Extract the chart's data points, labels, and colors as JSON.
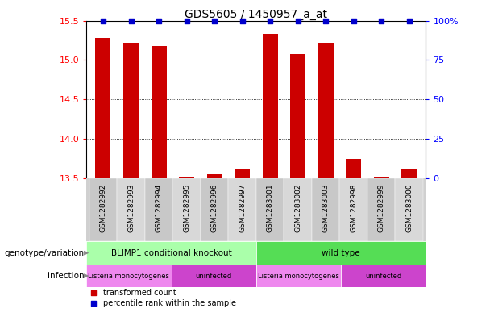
{
  "title": "GDS5605 / 1450957_a_at",
  "samples": [
    "GSM1282992",
    "GSM1282993",
    "GSM1282994",
    "GSM1282995",
    "GSM1282996",
    "GSM1282997",
    "GSM1283001",
    "GSM1283002",
    "GSM1283003",
    "GSM1282998",
    "GSM1282999",
    "GSM1283000"
  ],
  "transformed_counts": [
    15.28,
    15.22,
    15.18,
    13.52,
    13.55,
    13.62,
    15.33,
    15.08,
    15.22,
    13.75,
    13.52,
    13.62
  ],
  "ylim_left": [
    13.5,
    15.5
  ],
  "yticks_left": [
    13.5,
    14.0,
    14.5,
    15.0,
    15.5
  ],
  "yticks_right": [
    0,
    25,
    50,
    75,
    100
  ],
  "bar_color": "#cc0000",
  "dot_color": "#0000cc",
  "sample_bg_color": "#d0d0d0",
  "genotype_groups": [
    {
      "label": "BLIMP1 conditional knockout",
      "start": 0,
      "end": 6,
      "color": "#aaffaa"
    },
    {
      "label": "wild type",
      "start": 6,
      "end": 12,
      "color": "#55dd55"
    }
  ],
  "infection_groups": [
    {
      "label": "Listeria monocytogenes",
      "start": 0,
      "end": 3,
      "color": "#ee88ee"
    },
    {
      "label": "uninfected",
      "start": 3,
      "end": 6,
      "color": "#cc44cc"
    },
    {
      "label": "Listeria monocytogenes",
      "start": 6,
      "end": 9,
      "color": "#ee88ee"
    },
    {
      "label": "uninfected",
      "start": 9,
      "end": 12,
      "color": "#cc44cc"
    }
  ],
  "legend_items": [
    {
      "label": "transformed count",
      "color": "#cc0000"
    },
    {
      "label": "percentile rank within the sample",
      "color": "#0000cc"
    }
  ],
  "title_fontsize": 10,
  "tick_fontsize": 8,
  "sample_fontsize": 6.5,
  "label_fontsize": 7.5,
  "row_label_left": [
    "genotype/variation",
    "infection"
  ],
  "geno_row_label_fontsize": 8,
  "infect_row_label_fontsize": 8
}
